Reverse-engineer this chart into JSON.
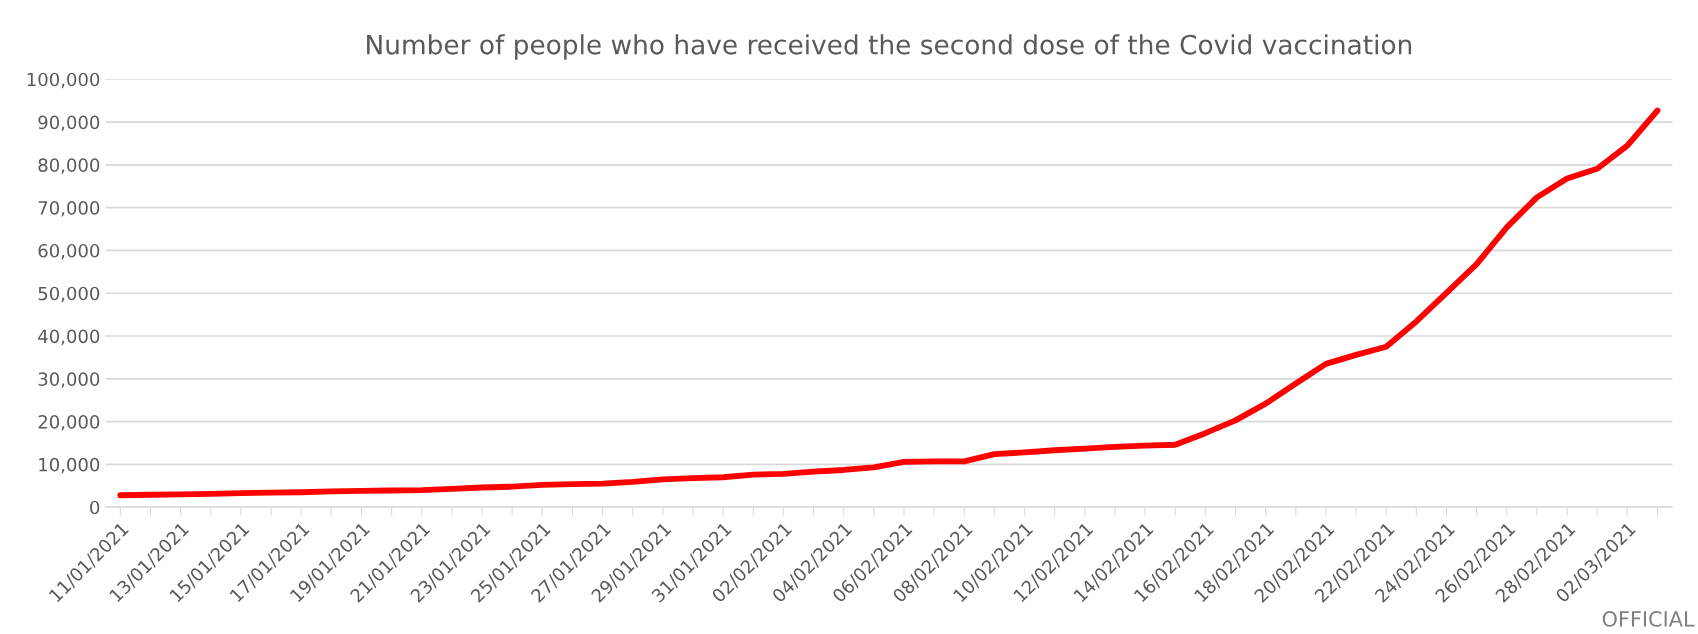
{
  "chart_data": {
    "type": "line",
    "title": "Number of people who have received the second dose of the Covid vaccination",
    "categories": [
      "11/01/2021",
      null,
      "13/01/2021",
      null,
      "15/01/2021",
      null,
      "17/01/2021",
      null,
      "19/01/2021",
      null,
      "21/01/2021",
      null,
      "23/01/2021",
      null,
      "25/01/2021",
      null,
      "27/01/2021",
      null,
      "29/01/2021",
      null,
      "31/01/2021",
      null,
      "02/02/2021",
      null,
      "04/02/2021",
      null,
      "06/02/2021",
      null,
      "08/02/2021",
      null,
      "10/02/2021",
      null,
      "12/02/2021",
      null,
      "14/02/2021",
      null,
      "16/02/2021",
      null,
      "18/02/2021",
      null,
      "20/02/2021",
      null,
      "22/02/2021",
      null,
      "24/02/2021",
      null,
      "26/02/2021",
      null,
      "28/02/2021",
      null,
      "02/03/2021",
      null
    ],
    "series": [
      {
        "color": "#ff0000",
        "values": [
          2800,
          2900,
          3000,
          3100,
          3300,
          3400,
          3500,
          3700,
          3800,
          3900,
          4000,
          4300,
          4600,
          4800,
          5200,
          5400,
          5500,
          5900,
          6500,
          6800,
          7000,
          7600,
          7800,
          8300,
          8700,
          9300,
          10600,
          10700,
          10700,
          12400,
          12800,
          13300,
          13700,
          14100,
          14400,
          14600,
          17300,
          20300,
          24200,
          28900,
          33500,
          35600,
          37500,
          43400,
          50100,
          56800,
          65400,
          72400,
          76800,
          79100,
          84500,
          92700
        ]
      }
    ],
    "ylim": [
      0,
      100000
    ],
    "yticks": [
      {
        "value": 0,
        "label": "0"
      },
      {
        "value": 10000,
        "label": "10,000"
      },
      {
        "value": 20000,
        "label": "20,000"
      },
      {
        "value": 30000,
        "label": "30,000"
      },
      {
        "value": 40000,
        "label": "40,000"
      },
      {
        "value": 50000,
        "label": "50,000"
      },
      {
        "value": 60000,
        "label": "60,000"
      },
      {
        "value": 70000,
        "label": "70,000"
      },
      {
        "value": 80000,
        "label": "80,000"
      },
      {
        "value": 90000,
        "label": "90,000"
      },
      {
        "value": 100000,
        "label": "100,000"
      }
    ],
    "grid": "y",
    "marker": "none",
    "line_style": "solid",
    "annotations": [
      "OFFICIAL"
    ]
  }
}
